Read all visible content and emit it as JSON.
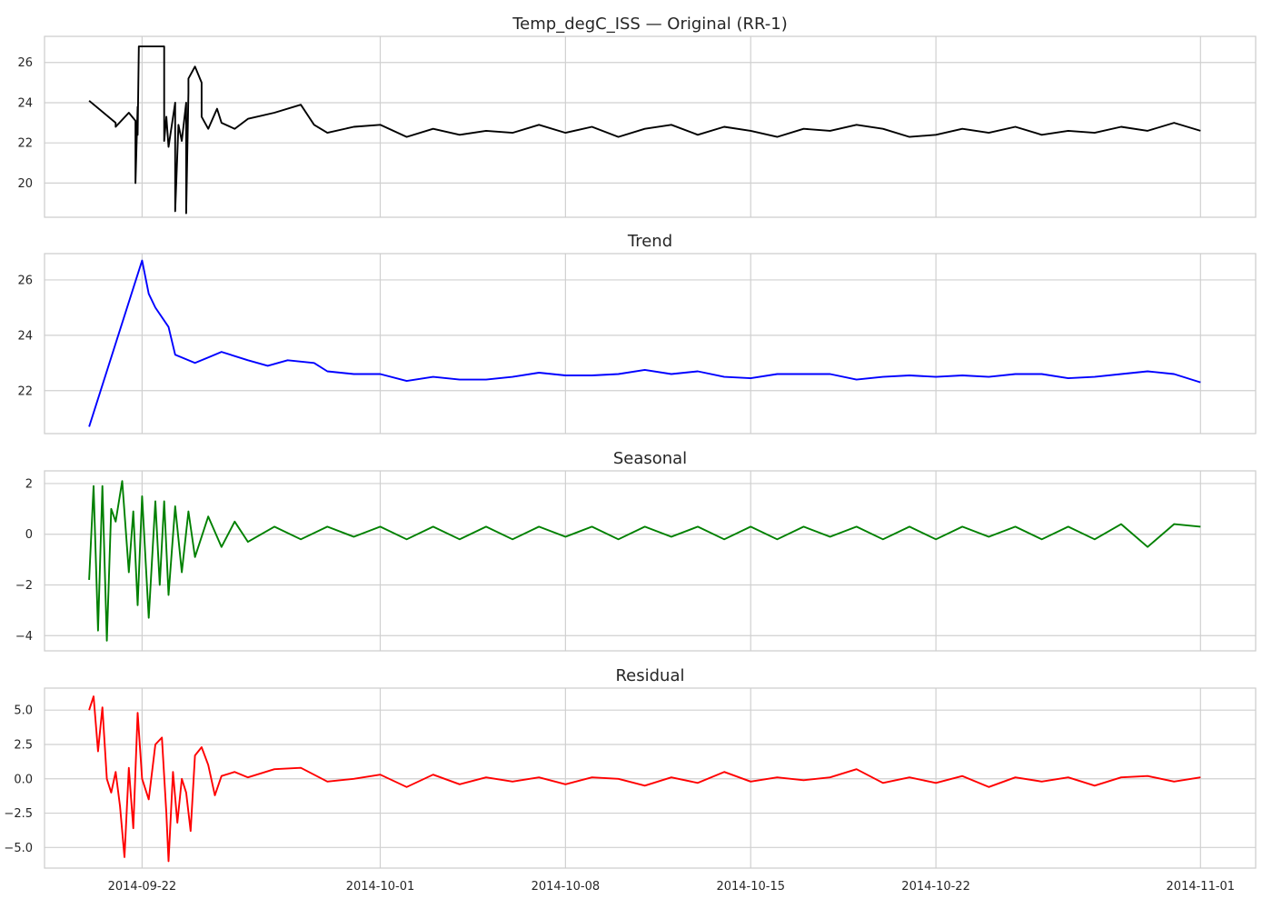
{
  "chart_data": [
    {
      "type": "line",
      "title": "Temp_degC_ISS — Original (RR-1)",
      "color": "#000000",
      "ylim": [
        18.3,
        27.3
      ],
      "yticks": [
        20,
        22,
        24,
        26
      ],
      "ytick_labels": [
        "20",
        "22",
        "24",
        "26"
      ],
      "series": [
        {
          "x": [
            "2014-09-20",
            "2014-09-21",
            "2014-09-21",
            "2014-09-21T12",
            "2014-09-21T18",
            "2014-09-21T18",
            "2014-09-21T20",
            "2014-09-21T20",
            "2014-09-21T21",
            "2014-09-21T21",
            "2014-09-22T12",
            "2014-09-22T20",
            "2014-09-22T20",
            "2014-09-22T22",
            "2014-09-23",
            "2014-09-23T06",
            "2014-09-23T06",
            "2014-09-23T09",
            "2014-09-23T09",
            "2014-09-23T12",
            "2014-09-23T16",
            "2014-09-23T16",
            "2014-09-23T18",
            "2014-09-23T18",
            "2014-09-24",
            "2014-09-24T06",
            "2014-09-24T06",
            "2014-09-24T12",
            "2014-09-24T20",
            "2014-09-25",
            "2014-09-25T12",
            "2014-09-26",
            "2014-09-27",
            "2014-09-28",
            "2014-09-28T12",
            "2014-09-29",
            "2014-09-30",
            "2014-10-01",
            "2014-10-02",
            "2014-10-03",
            "2014-10-04",
            "2014-10-05",
            "2014-10-06",
            "2014-10-07",
            "2014-10-08",
            "2014-10-09",
            "2014-10-10",
            "2014-10-11",
            "2014-10-12",
            "2014-10-13",
            "2014-10-14",
            "2014-10-15",
            "2014-10-16",
            "2014-10-17",
            "2014-10-18",
            "2014-10-19",
            "2014-10-20",
            "2014-10-21",
            "2014-10-22",
            "2014-10-23",
            "2014-10-24",
            "2014-10-25",
            "2014-10-26",
            "2014-10-27",
            "2014-10-28",
            "2014-10-29",
            "2014-10-30",
            "2014-10-31",
            "2014-11-01"
          ],
          "values": [
            24.1,
            23.0,
            22.8,
            23.5,
            23.1,
            20.0,
            23.8,
            22.4,
            26.8,
            26.8,
            26.8,
            26.8,
            22.1,
            23.3,
            21.8,
            24.0,
            18.6,
            22.9,
            22.9,
            22.1,
            24.0,
            18.5,
            24.5,
            25.2,
            25.8,
            25.0,
            23.3,
            22.7,
            23.7,
            23.0,
            22.7,
            23.2,
            23.5,
            23.9,
            22.9,
            22.5,
            22.8,
            22.9,
            22.3,
            22.7,
            22.4,
            22.6,
            22.5,
            22.9,
            22.5,
            22.8,
            22.3,
            22.7,
            22.9,
            22.4,
            22.8,
            22.6,
            22.3,
            22.7,
            22.6,
            22.9,
            22.7,
            22.3,
            22.4,
            22.7,
            22.5,
            22.8,
            22.4,
            22.6,
            22.5,
            22.8,
            22.6,
            23.0,
            22.6
          ]
        }
      ]
    },
    {
      "type": "line",
      "title": "Trend",
      "color": "#0000ff",
      "ylim": [
        20.45,
        26.95
      ],
      "yticks": [
        22,
        24,
        26
      ],
      "ytick_labels": [
        "22",
        "24",
        "26"
      ],
      "series": [
        {
          "x": [
            "2014-09-20",
            "2014-09-22",
            "2014-09-22T06",
            "2014-09-22T12",
            "2014-09-23",
            "2014-09-23T06",
            "2014-09-23T12",
            "2014-09-24",
            "2014-09-24T12",
            "2014-09-25",
            "2014-09-26",
            "2014-09-26T18",
            "2014-09-27T12",
            "2014-09-28T12",
            "2014-09-29",
            "2014-09-30",
            "2014-10-01",
            "2014-10-02",
            "2014-10-03",
            "2014-10-04",
            "2014-10-05",
            "2014-10-06",
            "2014-10-07",
            "2014-10-08",
            "2014-10-09",
            "2014-10-10",
            "2014-10-11",
            "2014-10-12",
            "2014-10-13",
            "2014-10-14",
            "2014-10-15",
            "2014-10-16",
            "2014-10-17",
            "2014-10-18",
            "2014-10-19",
            "2014-10-20",
            "2014-10-21",
            "2014-10-22",
            "2014-10-23",
            "2014-10-24",
            "2014-10-25",
            "2014-10-26",
            "2014-10-27",
            "2014-10-28",
            "2014-10-29",
            "2014-10-30",
            "2014-10-31",
            "2014-11-01"
          ],
          "values": [
            20.7,
            26.7,
            25.5,
            25.0,
            24.3,
            23.3,
            23.2,
            23.0,
            23.2,
            23.4,
            23.1,
            22.9,
            23.1,
            23.0,
            22.7,
            22.6,
            22.6,
            22.35,
            22.5,
            22.4,
            22.4,
            22.5,
            22.65,
            22.55,
            22.55,
            22.6,
            22.75,
            22.6,
            22.7,
            22.5,
            22.45,
            22.6,
            22.6,
            22.6,
            22.4,
            22.5,
            22.55,
            22.5,
            22.55,
            22.5,
            22.6,
            22.6,
            22.45,
            22.5,
            22.6,
            22.7,
            22.6,
            22.3
          ]
        }
      ]
    },
    {
      "type": "line",
      "title": "Seasonal",
      "color": "#008000",
      "ylim": [
        -4.6,
        2.5
      ],
      "yticks": [
        -4,
        -2,
        0,
        2
      ],
      "ytick_labels": [
        "−4",
        "−2",
        "0",
        "2"
      ],
      "series": [
        {
          "x": [
            "2014-09-20",
            "2014-09-20T04",
            "2014-09-20T08",
            "2014-09-20T12",
            "2014-09-20T16",
            "2014-09-20T20",
            "2014-09-21",
            "2014-09-21T06",
            "2014-09-21T12",
            "2014-09-21T16",
            "2014-09-21T20",
            "2014-09-22",
            "2014-09-22T06",
            "2014-09-22T12",
            "2014-09-22T16",
            "2014-09-22T20",
            "2014-09-23",
            "2014-09-23T06",
            "2014-09-23T12",
            "2014-09-23T18",
            "2014-09-24",
            "2014-09-24T12",
            "2014-09-25",
            "2014-09-25T12",
            "2014-09-26",
            "2014-09-27",
            "2014-09-28",
            "2014-09-29",
            "2014-09-30",
            "2014-10-01",
            "2014-10-02",
            "2014-10-03",
            "2014-10-04",
            "2014-10-05",
            "2014-10-06",
            "2014-10-07",
            "2014-10-08",
            "2014-10-09",
            "2014-10-10",
            "2014-10-11",
            "2014-10-12",
            "2014-10-13",
            "2014-10-14",
            "2014-10-15",
            "2014-10-16",
            "2014-10-17",
            "2014-10-18",
            "2014-10-19",
            "2014-10-20",
            "2014-10-21",
            "2014-10-22",
            "2014-10-23",
            "2014-10-24",
            "2014-10-25",
            "2014-10-26",
            "2014-10-27",
            "2014-10-28",
            "2014-10-29",
            "2014-10-30",
            "2014-10-31",
            "2014-11-01"
          ],
          "values": [
            -1.8,
            1.9,
            -3.8,
            1.9,
            -4.2,
            1.0,
            0.5,
            2.1,
            -1.5,
            0.9,
            -2.8,
            1.5,
            -3.3,
            1.3,
            -2.0,
            1.3,
            -2.4,
            1.1,
            -1.5,
            0.9,
            -0.9,
            0.7,
            -0.5,
            0.5,
            -0.3,
            0.3,
            -0.2,
            0.3,
            -0.1,
            0.3,
            -0.2,
            0.3,
            -0.2,
            0.3,
            -0.2,
            0.3,
            -0.1,
            0.3,
            -0.2,
            0.3,
            -0.1,
            0.3,
            -0.2,
            0.3,
            -0.2,
            0.3,
            -0.1,
            0.3,
            -0.2,
            0.3,
            -0.2,
            0.3,
            -0.1,
            0.3,
            -0.2,
            0.3,
            -0.2,
            0.4,
            -0.5,
            0.4,
            0.3
          ]
        }
      ]
    },
    {
      "type": "line",
      "title": "Residual",
      "color": "#ff0000",
      "ylim": [
        -6.5,
        6.6
      ],
      "yticks": [
        -5.0,
        -2.5,
        0.0,
        2.5,
        5.0
      ],
      "ytick_labels": [
        "−5.0",
        "−2.5",
        "0.0",
        "2.5",
        "5.0"
      ],
      "series": [
        {
          "x": [
            "2014-09-20",
            "2014-09-20T04",
            "2014-09-20T08",
            "2014-09-20T12",
            "2014-09-20T16",
            "2014-09-20T20",
            "2014-09-21",
            "2014-09-21T04",
            "2014-09-21T08",
            "2014-09-21T12",
            "2014-09-21T16",
            "2014-09-21T20",
            "2014-09-22",
            "2014-09-22T06",
            "2014-09-22T12",
            "2014-09-22T18",
            "2014-09-22T22",
            "2014-09-23",
            "2014-09-23T04",
            "2014-09-23T08",
            "2014-09-23T12",
            "2014-09-23T16",
            "2014-09-23T20",
            "2014-09-24",
            "2014-09-24T06",
            "2014-09-24T12",
            "2014-09-24T18",
            "2014-09-25",
            "2014-09-25T12",
            "2014-09-26",
            "2014-09-27",
            "2014-09-28",
            "2014-09-29",
            "2014-09-30",
            "2014-10-01",
            "2014-10-02",
            "2014-10-03",
            "2014-10-04",
            "2014-10-05",
            "2014-10-06",
            "2014-10-07",
            "2014-10-08",
            "2014-10-09",
            "2014-10-10",
            "2014-10-11",
            "2014-10-12",
            "2014-10-13",
            "2014-10-14",
            "2014-10-15",
            "2014-10-16",
            "2014-10-17",
            "2014-10-18",
            "2014-10-19",
            "2014-10-20",
            "2014-10-21",
            "2014-10-22",
            "2014-10-23",
            "2014-10-24",
            "2014-10-25",
            "2014-10-26",
            "2014-10-27",
            "2014-10-28",
            "2014-10-29",
            "2014-10-30",
            "2014-10-31",
            "2014-11-01"
          ],
          "values": [
            5.0,
            6.0,
            2.0,
            5.2,
            0.0,
            -1.0,
            0.5,
            -2.0,
            -5.7,
            0.8,
            -3.6,
            4.8,
            0.0,
            -1.5,
            2.5,
            3.0,
            -2.5,
            -6.0,
            0.5,
            -3.2,
            0.0,
            -1.0,
            -3.8,
            1.7,
            2.3,
            1.0,
            -1.2,
            0.2,
            0.5,
            0.1,
            0.7,
            0.8,
            -0.2,
            0.0,
            0.3,
            -0.6,
            0.3,
            -0.4,
            0.1,
            -0.2,
            0.1,
            -0.4,
            0.1,
            0.0,
            -0.5,
            0.1,
            -0.3,
            0.5,
            -0.2,
            0.1,
            -0.1,
            0.1,
            0.7,
            -0.3,
            0.1,
            -0.3,
            0.2,
            -0.6,
            0.1,
            -0.2,
            0.1,
            -0.5,
            0.1,
            0.2,
            -0.2,
            0.1
          ]
        }
      ]
    }
  ],
  "x_axis": {
    "xlim": [
      "2014-09-18T07:30",
      "2014-11-03T02:00"
    ],
    "ticks": [
      "2014-09-22",
      "2014-10-01",
      "2014-10-08",
      "2014-10-15",
      "2014-10-22",
      "2014-11-01"
    ],
    "tick_labels": [
      "2014-09-22",
      "2014-10-01",
      "2014-10-08",
      "2014-10-15",
      "2014-10-22",
      "2014-11-01"
    ]
  },
  "style": {
    "grid": true,
    "background": "#ffffff",
    "grid_color": "#d0d0d0",
    "frame_color": "#cccccc"
  }
}
